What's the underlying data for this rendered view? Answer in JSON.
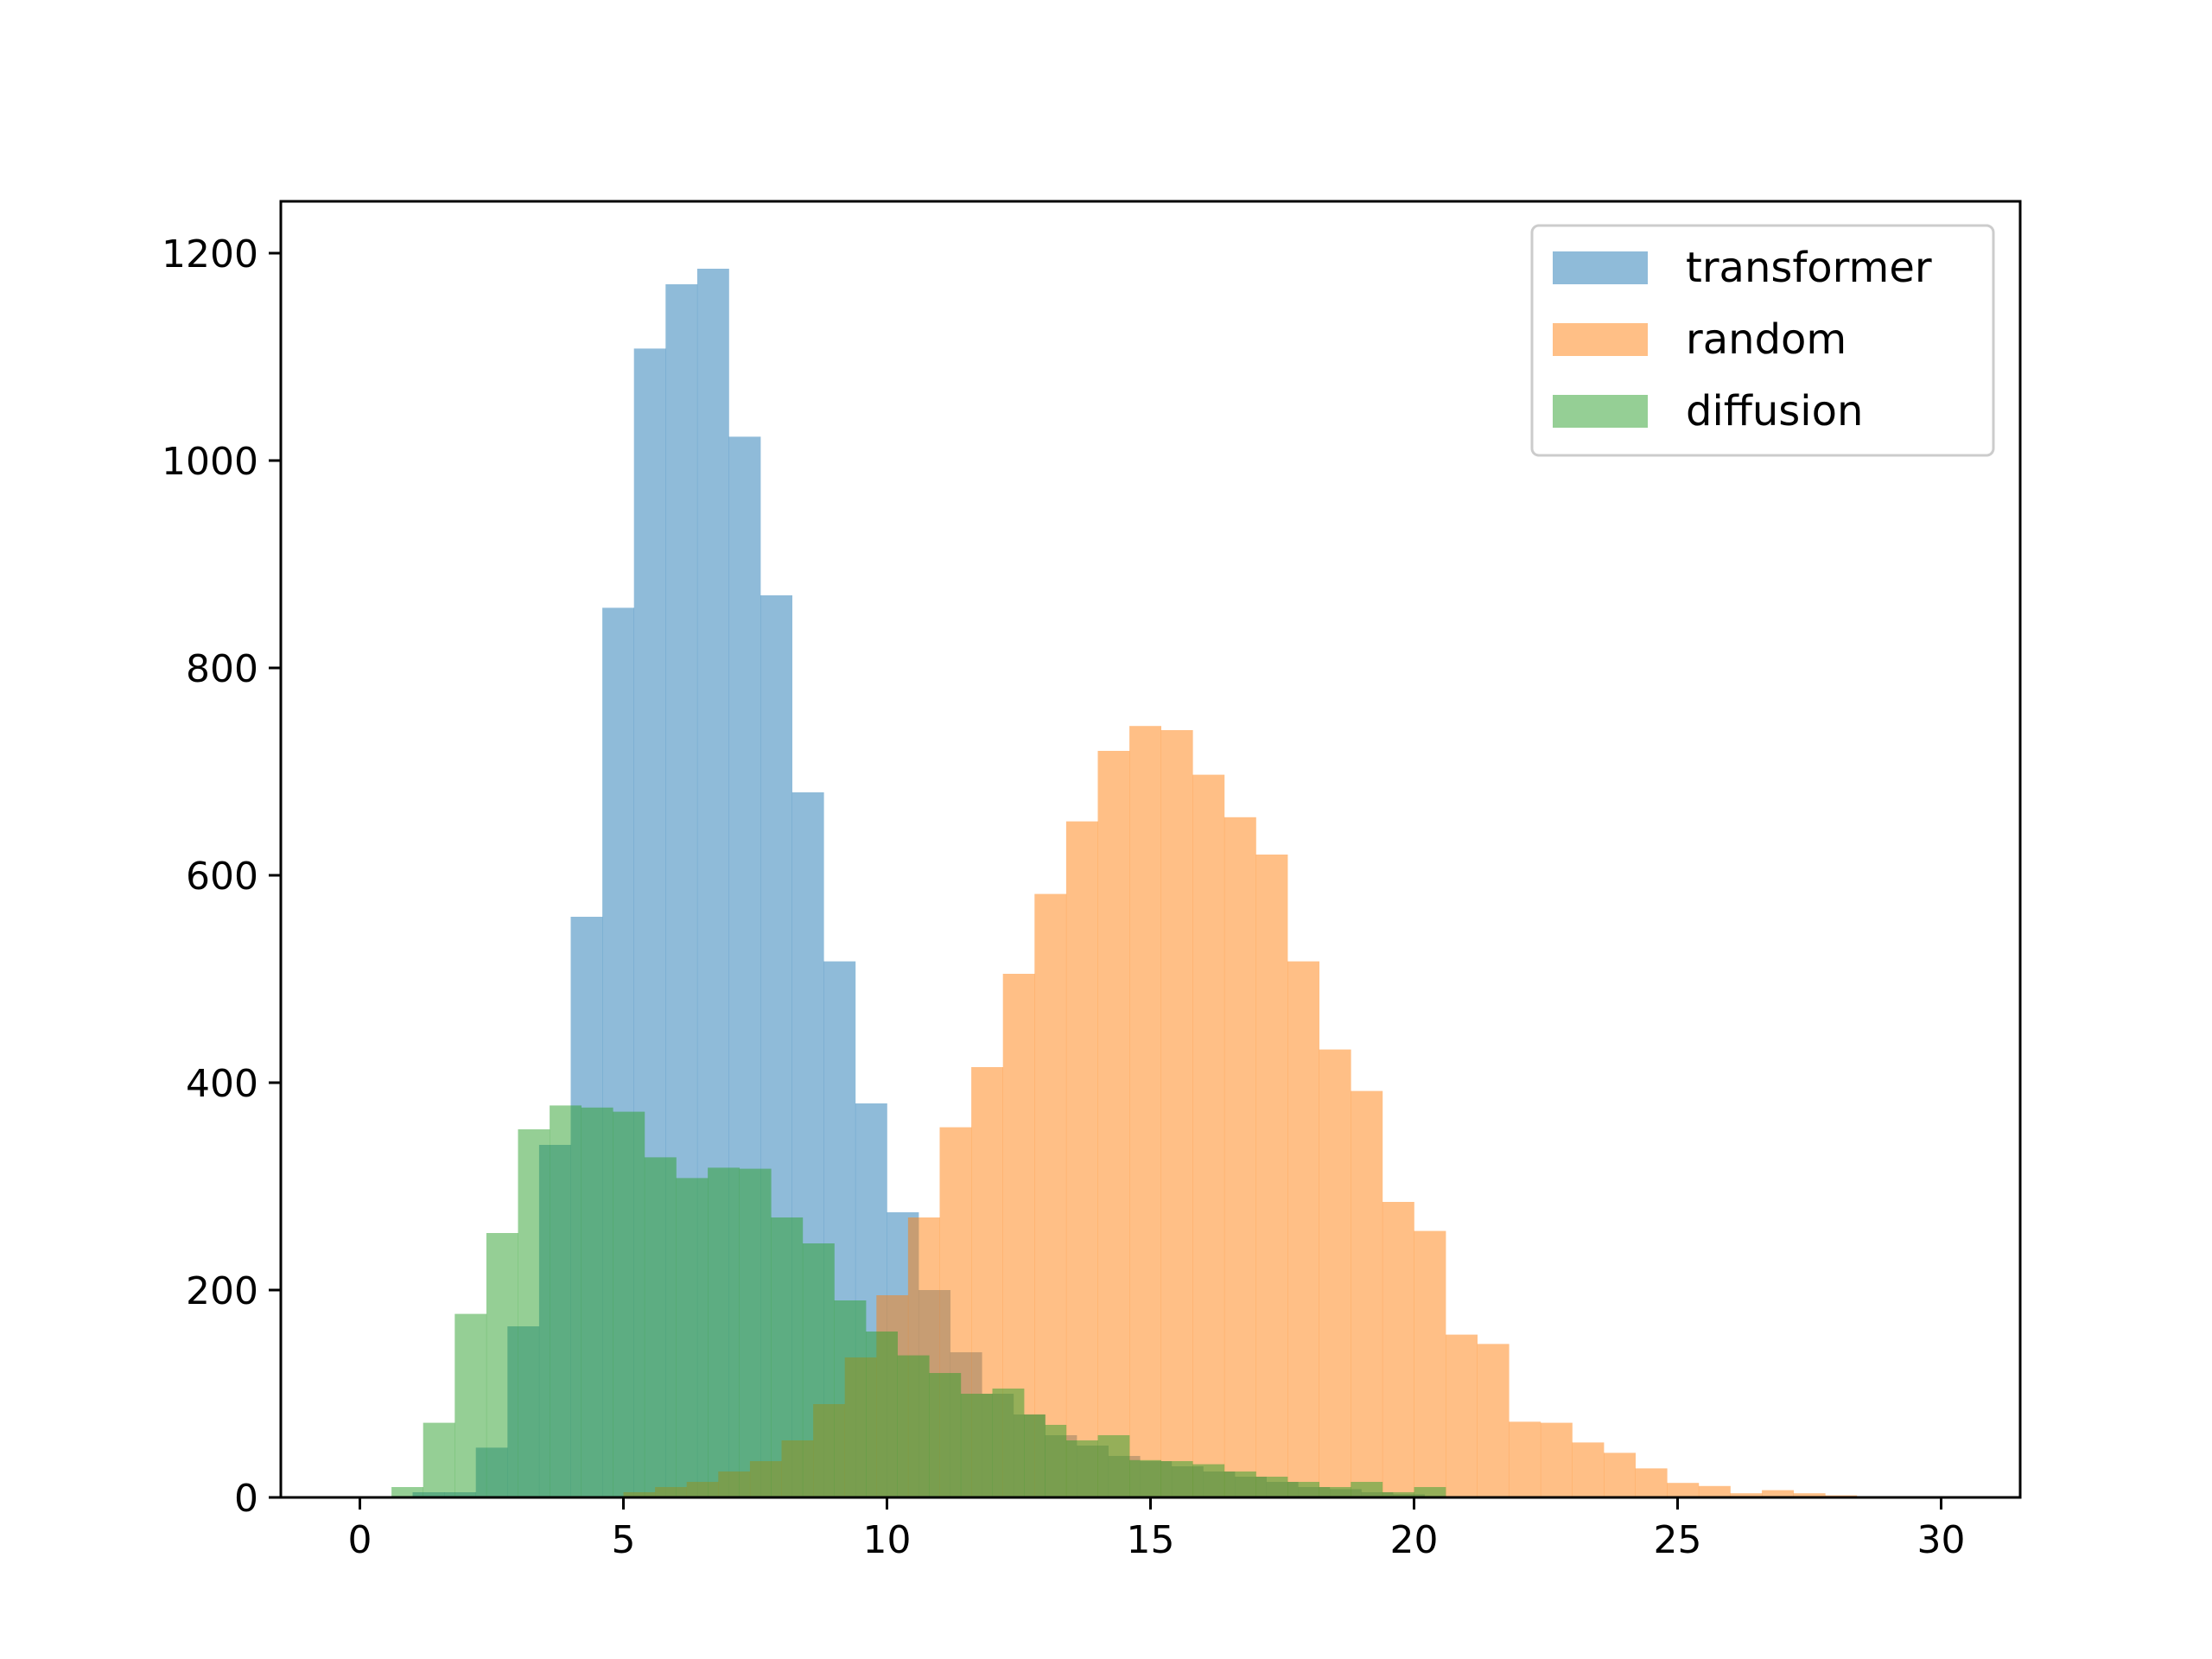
{
  "chart_data": {
    "type": "bar",
    "subtype": "histogram",
    "title": "",
    "xlabel": "",
    "ylabel": "",
    "xlim": [
      -1.5,
      31.5
    ],
    "ylim": [
      0,
      1250
    ],
    "xticks": [
      0,
      5,
      10,
      15,
      20,
      25,
      30
    ],
    "yticks": [
      0,
      200,
      400,
      600,
      800,
      1000,
      1200
    ],
    "grid": false,
    "legend_position": "upper right",
    "series": [
      {
        "name": "transformer",
        "color": "#1f77b4",
        "alpha": 0.5,
        "bin_edges": [
          1.0,
          1.6,
          2.2,
          2.8,
          3.4,
          4.0,
          4.6,
          5.2,
          5.8,
          6.4,
          7.0,
          7.6,
          8.2,
          8.8,
          9.4,
          10.0,
          10.6,
          11.2,
          11.8,
          12.4,
          13.0,
          13.6,
          14.2,
          14.8,
          15.4,
          16.0,
          16.6,
          17.2,
          17.8,
          18.4,
          19.0,
          19.6,
          20.2
        ],
        "counts": [
          5,
          5,
          48,
          165,
          340,
          560,
          858,
          1108,
          1170,
          1185,
          1023,
          870,
          680,
          517,
          380,
          275,
          200,
          140,
          100,
          80,
          60,
          50,
          40,
          35,
          30,
          25,
          20,
          15,
          10,
          8,
          5,
          3
        ]
      },
      {
        "name": "random",
        "color": "#ff7f0e",
        "alpha": 0.5,
        "bin_edges": [
          5.0,
          5.6,
          6.2,
          6.8,
          7.4,
          8.0,
          8.6,
          9.2,
          9.8,
          10.4,
          11.0,
          11.6,
          12.2,
          12.8,
          13.4,
          14.0,
          14.6,
          15.2,
          15.8,
          16.4,
          17.0,
          17.6,
          18.2,
          18.8,
          19.4,
          20.0,
          20.6,
          21.2,
          21.8,
          22.4,
          23.0,
          23.6,
          24.2,
          24.8,
          25.4,
          26.0,
          26.6,
          27.2,
          27.8,
          28.4,
          29.0,
          29.6,
          30.2
        ],
        "counts": [
          5,
          10,
          15,
          25,
          35,
          55,
          90,
          135,
          195,
          270,
          357,
          415,
          505,
          582,
          652,
          720,
          744,
          740,
          697,
          656,
          620,
          517,
          432,
          392,
          285,
          257,
          157,
          148,
          73,
          72,
          53,
          43,
          28,
          14,
          11,
          4,
          7,
          4,
          2,
          1,
          1,
          1
        ]
      },
      {
        "name": "diffusion",
        "color": "#2ca02c",
        "alpha": 0.5,
        "bin_edges": [
          0.6,
          1.2,
          1.8,
          2.4,
          3.0,
          3.6,
          4.2,
          4.8,
          5.4,
          6.0,
          6.6,
          7.2,
          7.8,
          8.4,
          9.0,
          9.6,
          10.2,
          10.8,
          11.4,
          12.0,
          12.6,
          13.0,
          13.4,
          14.0,
          14.6,
          15.2,
          15.8,
          16.4,
          17.0,
          17.6,
          18.2,
          18.8,
          19.4,
          20.0,
          20.6
        ],
        "counts": [
          10,
          72,
          177,
          255,
          355,
          378,
          376,
          372,
          328,
          308,
          318,
          317,
          270,
          245,
          190,
          160,
          137,
          120,
          100,
          105,
          80,
          70,
          55,
          60,
          36,
          35,
          32,
          25,
          20,
          15,
          10,
          15,
          5,
          10
        ]
      }
    ]
  }
}
